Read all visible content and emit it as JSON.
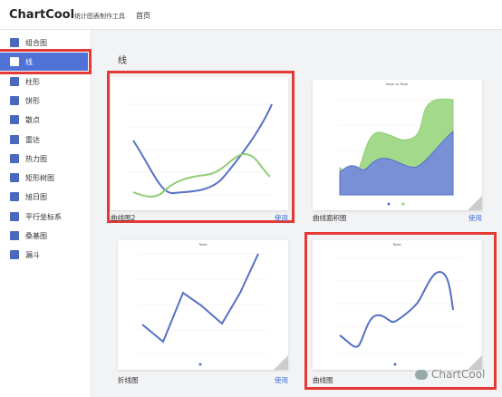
{
  "header": {
    "logo": "ChartCool",
    "subtitle": "统计图表制作工具",
    "nav": [
      "首页"
    ]
  },
  "sidebar": {
    "items": [
      "组合图",
      "线",
      "柱形",
      "饼形",
      "散点",
      "雷达",
      "热力图",
      "矩形树图",
      "旭日图",
      "平行坐标系",
      "桑基图",
      "漏斗"
    ],
    "selected": 1
  },
  "section": {
    "title": "线"
  },
  "cards": [
    {
      "caption": "曲线图2",
      "action": "使用",
      "highlighted": true
    },
    {
      "caption": "曲线面积图",
      "action": "使用",
      "chart_title": "Value vs Taste",
      "highlighted": false
    },
    {
      "caption": "折线图",
      "action": "使用",
      "chart_title": "Taste",
      "highlighted": false
    },
    {
      "caption": "曲线图",
      "chart_title": "Taste",
      "highlighted": true
    }
  ],
  "watermark": "ChartCool"
}
